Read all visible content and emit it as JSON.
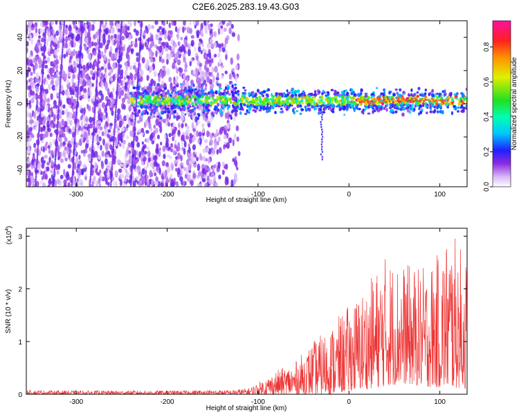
{
  "title": "C2E6.2025.283.19.43.G03",
  "chart_data": [
    {
      "type": "heatmap",
      "xlabel": "Height of straight line (km)",
      "ylabel": "Frequency (Hz)",
      "xlim": [
        -355,
        130
      ],
      "ylim": [
        -50,
        50
      ],
      "x_ticks": [
        -300,
        -200,
        -100,
        0,
        100
      ],
      "y_ticks": [
        -40,
        -20,
        0,
        20,
        40
      ],
      "colorbar": {
        "label": "Normalized spectral amplitude",
        "range": [
          0,
          0.95
        ],
        "ticks": [
          0.0,
          0.2,
          0.4,
          0.6,
          0.8
        ]
      }
    },
    {
      "type": "line",
      "xlabel": "Height of straight line (km)",
      "ylabel": "SNR (10 * v/v)",
      "y_multiplier": "(x10",
      "y_multiplier_exp": "4",
      "y_multiplier_close": ")",
      "xlim": [
        -355,
        130
      ],
      "ylim": [
        0,
        3.15
      ],
      "x_ticks": [
        -300,
        -200,
        -100,
        0,
        100
      ],
      "y_ticks": [
        0,
        1,
        2,
        3
      ],
      "color": "#ee3333",
      "envelope": {
        "x": [
          -355,
          -300,
          -250,
          -200,
          -160,
          -130,
          -110,
          -100,
          -80,
          -60,
          -40,
          -20,
          0,
          20,
          40,
          60,
          80,
          100,
          110,
          120,
          130
        ],
        "min": [
          0,
          0,
          0,
          0,
          0,
          0,
          0,
          0,
          0,
          0,
          0,
          0,
          0.05,
          0.1,
          0.15,
          0.2,
          0.15,
          0.12,
          0.1,
          0.12,
          0.1
        ],
        "max": [
          0.08,
          0.07,
          0.07,
          0.07,
          0.08,
          0.08,
          0.12,
          0.22,
          0.45,
          0.6,
          1.0,
          1.3,
          1.7,
          2.1,
          2.65,
          2.5,
          2.4,
          2.7,
          3.15,
          2.9,
          2.6
        ]
      }
    }
  ]
}
